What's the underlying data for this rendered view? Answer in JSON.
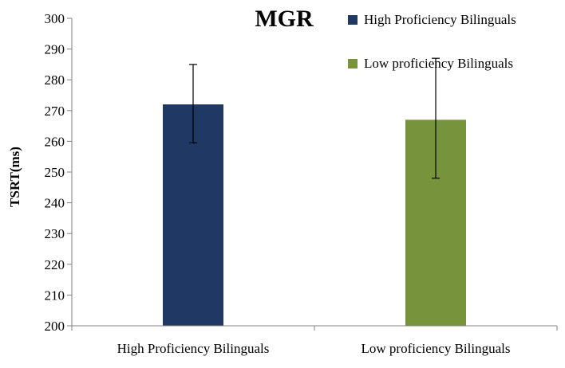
{
  "chart_data": {
    "type": "bar",
    "title": "MGR",
    "ylabel": "TSRT(ms)",
    "xlabel": "",
    "ylim": [
      200,
      300
    ],
    "yticks": [
      200,
      210,
      220,
      230,
      240,
      250,
      260,
      270,
      280,
      290,
      300
    ],
    "categories": [
      "High Proficiency Bilinguals",
      "Low proficiency Bilinguals"
    ],
    "values": [
      272,
      267
    ],
    "error_low": [
      259.5,
      248
    ],
    "error_high": [
      285,
      287
    ],
    "colors": [
      "#1f3864",
      "#77933c"
    ],
    "legend": {
      "placement": "top-right",
      "entries": [
        "High Proficiency Bilinguals",
        "Low proficiency Bilinguals"
      ]
    },
    "grid": false
  }
}
